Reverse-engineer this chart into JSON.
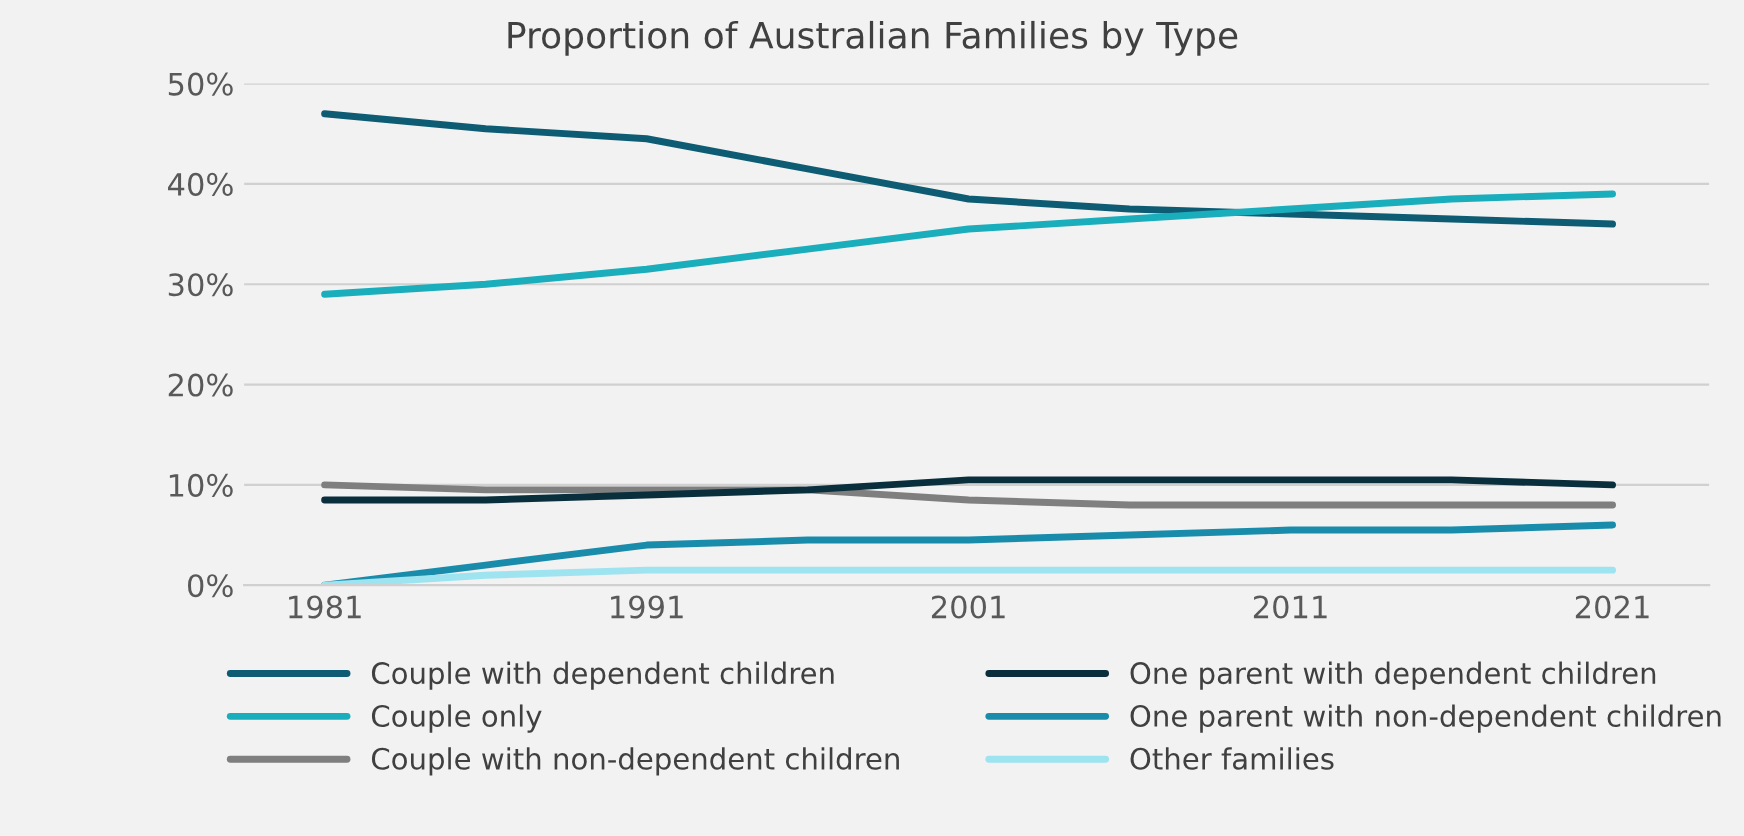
{
  "chart_data": {
    "type": "line",
    "title": "Proportion of Australian Families by Type",
    "x": [
      1981,
      1986,
      1991,
      1996,
      2001,
      2006,
      2011,
      2016,
      2021
    ],
    "xlim": [
      1978.5,
      2024
    ],
    "xticks": [
      1981,
      1991,
      2001,
      2011,
      2021
    ],
    "ylim": [
      0,
      50
    ],
    "yticks": [
      {
        "value": 0,
        "label": "0%"
      },
      {
        "value": 10,
        "label": "10%"
      },
      {
        "value": 20,
        "label": "20%"
      },
      {
        "value": 30,
        "label": "30%"
      },
      {
        "value": 40,
        "label": "40%"
      },
      {
        "value": 50,
        "label": "50%"
      }
    ],
    "grid": "y",
    "legend": "bottom",
    "marker": "none",
    "line_style": "solid",
    "series": [
      {
        "name": "Couple with dependent children",
        "color": "#0e5c73",
        "values": [
          47,
          45.5,
          44.5,
          41.5,
          38.5,
          37.5,
          37,
          36.5,
          36
        ]
      },
      {
        "name": "Couple only",
        "color": "#1aadbb",
        "values": [
          29,
          30,
          31.5,
          33.5,
          35.5,
          36.5,
          37.5,
          38.5,
          39
        ]
      },
      {
        "name": "Couple with non-dependent children",
        "color": "#7f7f7f",
        "values": [
          10,
          9.5,
          9.5,
          9.5,
          8.5,
          8,
          8,
          8,
          8
        ]
      },
      {
        "name": "One parent with dependent children",
        "color": "#0a2f3c",
        "values": [
          8.5,
          8.5,
          9,
          9.5,
          10.5,
          10.5,
          10.5,
          10.5,
          10
        ]
      },
      {
        "name": "One parent with non-dependent children",
        "color": "#1a8cab",
        "values": [
          0,
          2,
          4,
          4.5,
          4.5,
          5,
          5.5,
          5.5,
          6
        ]
      },
      {
        "name": "Other families",
        "color": "#9ee3f0",
        "values": [
          0,
          1,
          1.5,
          1.5,
          1.5,
          1.5,
          1.5,
          1.5,
          1.5
        ]
      }
    ]
  }
}
